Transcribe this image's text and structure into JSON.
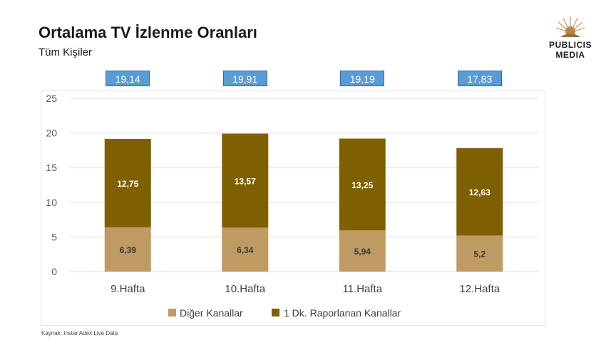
{
  "header": {
    "title": "Ortalama TV İzlenme Oranları",
    "subtitle": "Tüm Kişiler"
  },
  "logo": {
    "line1": "PUBLICIS",
    "line2": "MEDIA",
    "icon": "lion-sun-emblem-icon"
  },
  "chart_data": {
    "type": "bar",
    "stacked": true,
    "categories": [
      "9.Hafta",
      "10.Hafta",
      "11.Hafta",
      "12.Hafta"
    ],
    "series": [
      {
        "name": "Diğer Kanallar",
        "values": [
          6.39,
          6.34,
          5.94,
          5.2
        ],
        "labels": [
          "6,39",
          "6,34",
          "5,94",
          "5,2"
        ],
        "color": "#bf9b63"
      },
      {
        "name": "1 Dk. Raporlanan Kanallar",
        "values": [
          12.75,
          13.57,
          13.25,
          12.63
        ],
        "labels": [
          "12,75",
          "13,57",
          "13,25",
          "12,63"
        ],
        "color": "#7f6000"
      }
    ],
    "totals": [
      "19,14",
      "19,91",
      "19,19",
      "17,83"
    ],
    "yticks": [
      "0",
      "5",
      "10",
      "15",
      "20",
      "25"
    ],
    "ylim": [
      0,
      25
    ],
    "grid": true,
    "legend": "bottom",
    "colors": {
      "total_box": "#5b9bd5",
      "grid": "#d9d9d9"
    }
  },
  "footer": {
    "source": "Kaynak: Instar  Adex Live Data"
  }
}
